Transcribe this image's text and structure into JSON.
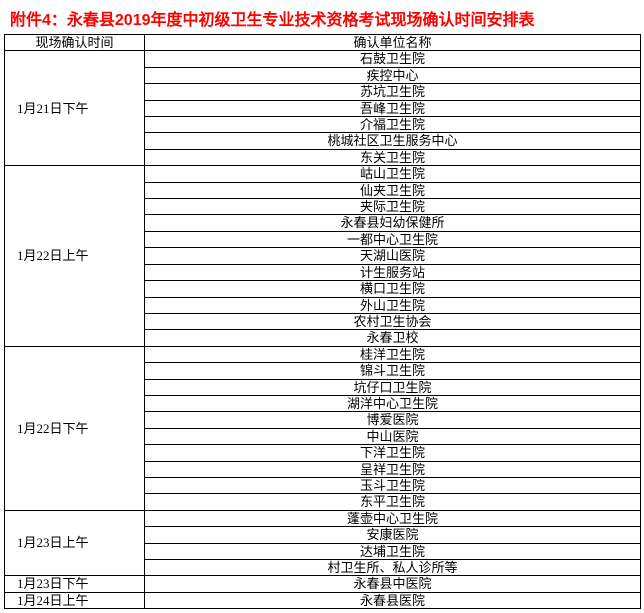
{
  "title": "附件4：永春县2019年度中初级卫生专业技术资格考试现场确认时间安排表",
  "headers": {
    "time": "现场确认时间",
    "unit": "确认单位名称"
  },
  "groups": [
    {
      "time": "1月21日下午",
      "units": [
        "石鼓卫生院",
        "疾控中心",
        "苏坑卫生院",
        "吾峰卫生院",
        "介福卫生院",
        "桃城社区卫生服务中心",
        "东关卫生院"
      ]
    },
    {
      "time": "1月22日上午",
      "units": [
        "岵山卫生院",
        "仙夹卫生院",
        "夹际卫生院",
        "永春县妇幼保健所",
        "一都中心卫生院",
        "天湖山医院",
        "计生服务站",
        "横口卫生院",
        "外山卫生院",
        "农村卫生协会",
        "永春卫校"
      ]
    },
    {
      "time": "1月22日下午",
      "units": [
        "桂洋卫生院",
        "锦斗卫生院",
        "坑仔口卫生院",
        "湖洋中心卫生院",
        "博爱医院",
        "中山医院",
        "下洋卫生院",
        "呈祥卫生院",
        "玉斗卫生院",
        "东平卫生院"
      ]
    },
    {
      "time": "1月23日上午",
      "units": [
        "蓬壶中心卫生院",
        "安康医院",
        "达埔卫生院",
        "村卫生所、私人诊所等"
      ]
    },
    {
      "time": "1月23日下午",
      "units": [
        "永春县中医院"
      ]
    },
    {
      "time": "1月24日上午",
      "units": [
        "永春县医院"
      ]
    }
  ]
}
